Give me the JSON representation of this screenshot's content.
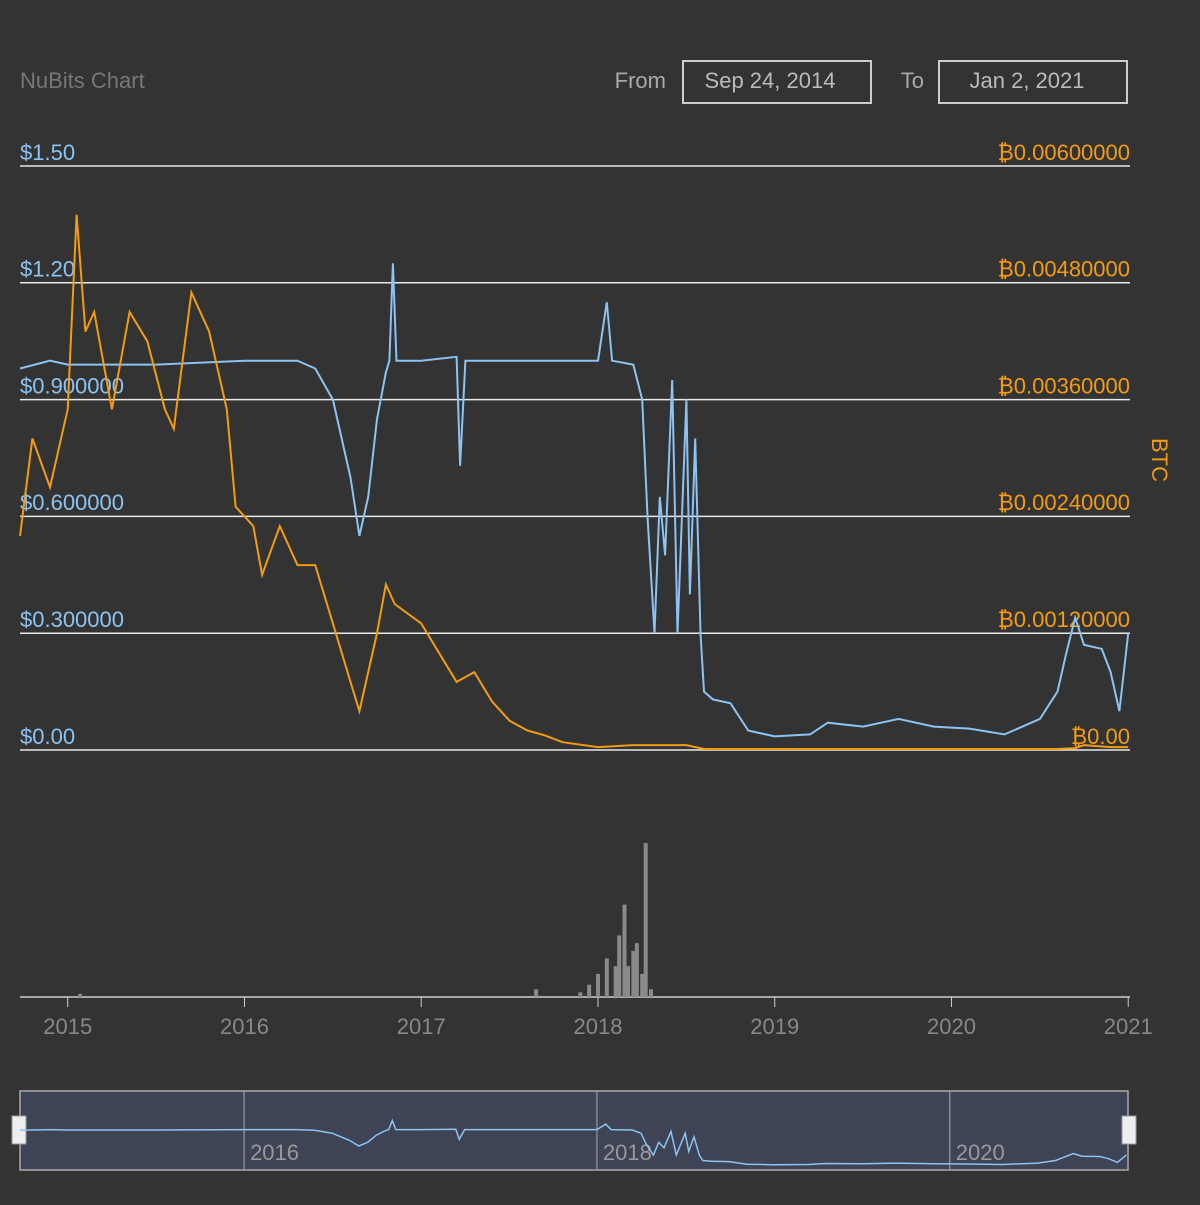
{
  "chart_data": {
    "type": "line",
    "title": "NuBits Chart",
    "range_controls": {
      "from_label": "From",
      "from_date": "Sep 24, 2014",
      "to_label": "To",
      "to_date": "Jan 2, 2021"
    },
    "y2label": "BTC",
    "xlim": [
      2014.73,
      2021.01
    ],
    "xticks": [
      2015,
      2016,
      2017,
      2018,
      2019,
      2020,
      2021
    ],
    "ylim": [
      0,
      1.5
    ],
    "yticks": [
      {
        "value": 0,
        "label": "$0.00"
      },
      {
        "value": 0.3,
        "label": "$0.300000"
      },
      {
        "value": 0.6,
        "label": "$0.600000"
      },
      {
        "value": 0.9,
        "label": "$0.900000"
      },
      {
        "value": 1.2,
        "label": "$1.20"
      },
      {
        "value": 1.5,
        "label": "$1.50"
      }
    ],
    "y2lim": [
      0,
      0.006
    ],
    "y2ticks": [
      {
        "value": 0,
        "label": "₿0.00"
      },
      {
        "value": 0.0012,
        "label": "₿0.00120000"
      },
      {
        "value": 0.0024,
        "label": "₿0.00240000"
      },
      {
        "value": 0.0036,
        "label": "₿0.00360000"
      },
      {
        "value": 0.0048,
        "label": "₿0.00480000"
      },
      {
        "value": 0.006,
        "label": "₿0.00600000"
      }
    ],
    "grid": true,
    "series": [
      {
        "color": "#8cc3f2",
        "axis": "y",
        "x": [
          2014.73,
          2014.9,
          2015.0,
          2015.5,
          2016.0,
          2016.3,
          2016.4,
          2016.5,
          2016.6,
          2016.65,
          2016.7,
          2016.75,
          2016.8,
          2016.82,
          2016.84,
          2016.86,
          2017.0,
          2017.2,
          2017.22,
          2017.25,
          2017.5,
          2017.8,
          2018.0,
          2018.05,
          2018.08,
          2018.2,
          2018.25,
          2018.28,
          2018.32,
          2018.35,
          2018.38,
          2018.42,
          2018.45,
          2018.5,
          2018.52,
          2018.55,
          2018.58,
          2018.6,
          2018.65,
          2018.75,
          2018.85,
          2019.0,
          2019.2,
          2019.3,
          2019.5,
          2019.7,
          2019.9,
          2020.1,
          2020.3,
          2020.5,
          2020.6,
          2020.65,
          2020.7,
          2020.75,
          2020.85,
          2020.9,
          2020.95,
          2021.0
        ],
        "values": [
          0.98,
          1.0,
          0.99,
          0.99,
          1.0,
          1.0,
          0.98,
          0.9,
          0.7,
          0.55,
          0.65,
          0.85,
          0.97,
          1.0,
          1.25,
          1.0,
          1.0,
          1.01,
          0.73,
          1.0,
          1.0,
          1.0,
          1.0,
          1.15,
          1.0,
          0.99,
          0.9,
          0.6,
          0.3,
          0.65,
          0.5,
          0.95,
          0.3,
          0.9,
          0.4,
          0.8,
          0.3,
          0.15,
          0.13,
          0.12,
          0.05,
          0.035,
          0.04,
          0.07,
          0.06,
          0.08,
          0.06,
          0.055,
          0.04,
          0.08,
          0.15,
          0.25,
          0.34,
          0.27,
          0.26,
          0.2,
          0.1,
          0.3
        ]
      },
      {
        "color": "#f39c12",
        "axis": "y2",
        "x": [
          2014.73,
          2014.8,
          2014.9,
          2015.0,
          2015.05,
          2015.1,
          2015.15,
          2015.25,
          2015.35,
          2015.45,
          2015.55,
          2015.6,
          2015.7,
          2015.8,
          2015.9,
          2015.95,
          2016.05,
          2016.1,
          2016.2,
          2016.3,
          2016.4,
          2016.5,
          2016.6,
          2016.65,
          2016.75,
          2016.8,
          2016.85,
          2017.0,
          2017.1,
          2017.2,
          2017.3,
          2017.4,
          2017.5,
          2017.6,
          2017.7,
          2017.8,
          2018.0,
          2018.2,
          2018.5,
          2018.6,
          2019.0,
          2020.0,
          2020.6,
          2020.7,
          2020.75,
          2020.9,
          2021.0
        ],
        "values": [
          0.0022,
          0.0032,
          0.0027,
          0.0035,
          0.0055,
          0.0043,
          0.0045,
          0.0035,
          0.0045,
          0.0042,
          0.0035,
          0.0033,
          0.0047,
          0.0043,
          0.0035,
          0.0025,
          0.0023,
          0.0018,
          0.0023,
          0.0019,
          0.0019,
          0.0013,
          0.0007,
          0.0004,
          0.0012,
          0.0017,
          0.0015,
          0.0013,
          0.001,
          0.0007,
          0.0008,
          0.0005,
          0.0003,
          0.0002,
          0.00015,
          8e-05,
          3e-05,
          5e-05,
          5e-05,
          1e-05,
          1e-05,
          1e-05,
          1e-05,
          2e-05,
          5e-05,
          3e-05,
          3e-05
        ]
      }
    ],
    "volume": {
      "color": "#8a8a8a",
      "ylim": [
        0,
        100
      ],
      "x": [
        2015.07,
        2017.65,
        2017.9,
        2017.95,
        2018.0,
        2018.05,
        2018.1,
        2018.12,
        2018.15,
        2018.17,
        2018.2,
        2018.22,
        2018.25,
        2018.27,
        2018.3
      ],
      "values": [
        2,
        5,
        3,
        8,
        15,
        25,
        20,
        40,
        60,
        20,
        30,
        35,
        15,
        100,
        5
      ]
    },
    "navigator": {
      "xticks": [
        2016,
        2018,
        2020
      ]
    }
  }
}
